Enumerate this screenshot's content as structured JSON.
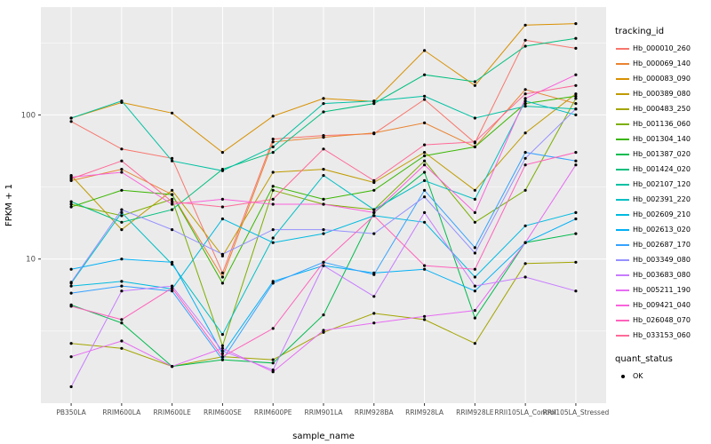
{
  "chart_data": {
    "type": "line",
    "title": "",
    "xlabel": "sample_name",
    "ylabel": "FPKM + 1",
    "y_scale": "log10",
    "ylim": [
      1,
      560
    ],
    "y_major_breaks": [
      10,
      100
    ],
    "y_tick_labels": [
      "10",
      "100"
    ],
    "y_minor_breaks": [
      3.162,
      31.62,
      316.2
    ],
    "grid": true,
    "legend_position": "right",
    "panel_bg": "#EBEBEB",
    "grid_color": "#FFFFFF",
    "tick_color": "#333333",
    "tick_label_color": "#4D4D4D",
    "point_color": "#000000",
    "categories": [
      "PB350LA",
      "RRIM600LA",
      "RRIM600LE",
      "RRIM600SE",
      "RRIM600PE",
      "RRIM901LA",
      "RRIM928BA",
      "RRIM928LA",
      "RRIM928LE",
      "RRII105LA_Control",
      "RRII105LA_Stressed"
    ],
    "series": [
      {
        "name": "Hb_000010_260",
        "color": "#F8766D",
        "values": [
          90,
          58,
          50,
          8,
          68,
          72,
          74,
          128,
          64,
          330,
          290
        ]
      },
      {
        "name": "Hb_000069_140",
        "color": "#EA8331",
        "values": [
          35,
          42,
          28,
          7.5,
          65,
          70,
          75,
          88,
          60,
          150,
          120
        ]
      },
      {
        "name": "Hb_000083_090",
        "color": "#D89000",
        "values": [
          95,
          122,
          103,
          55,
          98,
          130,
          124,
          280,
          160,
          420,
          430
        ]
      },
      {
        "name": "Hb_000389_080",
        "color": "#C09B00",
        "values": [
          38,
          16,
          30,
          10.5,
          40,
          42,
          34,
          55,
          30,
          75,
          140
        ]
      },
      {
        "name": "Hb_000483_250",
        "color": "#A3A500",
        "values": [
          2.6,
          2.4,
          1.8,
          2.1,
          2.0,
          3.1,
          4.2,
          3.8,
          2.6,
          9.3,
          9.5
        ]
      },
      {
        "name": "Hb_001136_060",
        "color": "#7CAE00",
        "values": [
          24,
          20,
          26,
          2.5,
          30,
          24,
          22,
          48,
          18,
          30,
          130
        ]
      },
      {
        "name": "Hb_001304_140",
        "color": "#39B600",
        "values": [
          23,
          30,
          28,
          6.8,
          32,
          26,
          30,
          52,
          60,
          120,
          135
        ]
      },
      {
        "name": "Hb_001387_020",
        "color": "#00BB4E",
        "values": [
          4.8,
          3.6,
          1.8,
          2.0,
          1.9,
          4.1,
          21,
          40,
          3.9,
          13,
          15
        ]
      },
      {
        "name": "Hb_001424_020",
        "color": "#00BF7D",
        "values": [
          25,
          18,
          22,
          42,
          55,
          105,
          120,
          190,
          170,
          300,
          340
        ]
      },
      {
        "name": "Hb_002107_120",
        "color": "#00C1A3",
        "values": [
          95,
          125,
          48,
          41,
          60,
          120,
          125,
          135,
          95,
          115,
          110
        ]
      },
      {
        "name": "Hb_002391_220",
        "color": "#00BFC4",
        "values": [
          6.8,
          21,
          9.2,
          3.0,
          14,
          38,
          22,
          35,
          26,
          125,
          100
        ]
      },
      {
        "name": "Hb_002609_210",
        "color": "#00BAE0",
        "values": [
          6.5,
          7.0,
          6.2,
          19,
          13,
          15,
          20,
          18,
          7.5,
          17,
          21
        ]
      },
      {
        "name": "Hb_002613_020",
        "color": "#00B0F6",
        "values": [
          8.5,
          10,
          9.5,
          2.2,
          7.0,
          9.0,
          8.0,
          8.5,
          6.0,
          13,
          19
        ]
      },
      {
        "name": "Hb_002687_170",
        "color": "#35A2FF",
        "values": [
          5.8,
          6.5,
          6.0,
          2.0,
          6.8,
          9.5,
          7.8,
          30,
          12,
          55,
          48
        ]
      },
      {
        "name": "Hb_003349_080",
        "color": "#9590FF",
        "values": [
          6.9,
          22,
          16,
          10.8,
          16,
          16,
          15,
          27,
          11,
          50,
          110
        ]
      },
      {
        "name": "Hb_003683_080",
        "color": "#C77CFF",
        "values": [
          1.3,
          6.0,
          6.5,
          2.3,
          1.7,
          9.0,
          5.5,
          21,
          6.5,
          7.5,
          6.0
        ]
      },
      {
        "name": "Hb_005211_190",
        "color": "#E76BF3",
        "values": [
          2.1,
          2.7,
          1.8,
          2.4,
          1.65,
          3.2,
          3.6,
          4.0,
          4.4,
          13,
          45
        ]
      },
      {
        "name": "Hb_009421_040",
        "color": "#FA62DB",
        "values": [
          37,
          40,
          24,
          26,
          24,
          24,
          21,
          45,
          21,
          130,
          190
        ]
      },
      {
        "name": "Hb_026048_070",
        "color": "#FF62BC",
        "values": [
          4.7,
          3.8,
          6.3,
          2.1,
          3.3,
          9.5,
          20,
          9.0,
          8.5,
          45,
          55
        ]
      },
      {
        "name": "Hb_033153_060",
        "color": "#FF6A98",
        "values": [
          36,
          48,
          25,
          23,
          26,
          58,
          35,
          62,
          65,
          140,
          160
        ]
      }
    ],
    "legend": {
      "tracking_title": "tracking_id",
      "quant_title": "quant_status",
      "quant_items": [
        "OK"
      ]
    }
  }
}
